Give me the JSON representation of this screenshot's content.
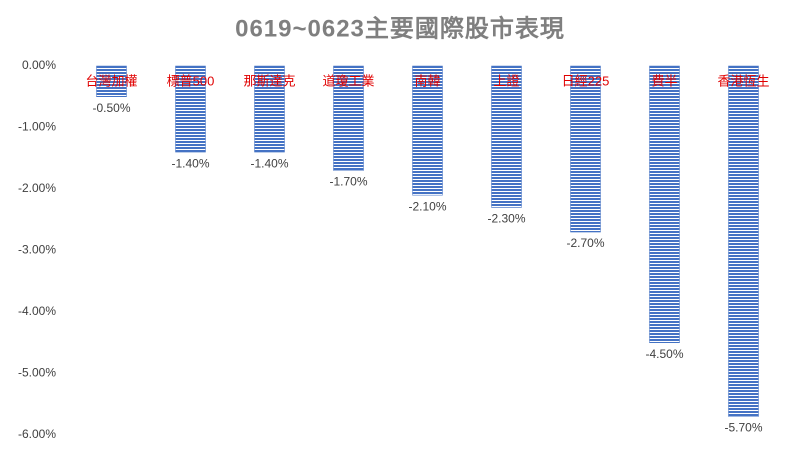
{
  "chart_data": {
    "type": "bar",
    "title": "0619~0623主要國際股市表現",
    "categories": [
      "台灣加權",
      "標普500",
      "那斯達克",
      "道瓊工業",
      "南韓",
      "上證",
      "日經225",
      "費半",
      "香港恆生"
    ],
    "values": [
      -0.5,
      -1.4,
      -1.4,
      -1.7,
      -2.1,
      -2.3,
      -2.7,
      -4.5,
      -5.7
    ],
    "value_labels": [
      "-0.50%",
      "-1.40%",
      "-1.40%",
      "-1.70%",
      "-2.10%",
      "-2.30%",
      "-2.70%",
      "-4.50%",
      "-5.70%"
    ],
    "color": "#4472c4",
    "ylim": [
      -6,
      0
    ],
    "yticks": [
      {
        "value": 0,
        "label": "0.00%"
      },
      {
        "value": -1,
        "label": "-1.00%"
      },
      {
        "value": -2,
        "label": "-2.00%"
      },
      {
        "value": -3,
        "label": "-3.00%"
      },
      {
        "value": -4,
        "label": "-4.00%"
      },
      {
        "value": -5,
        "label": "-5.00%"
      },
      {
        "value": -6,
        "label": "-6.00%"
      }
    ],
    "grid": false
  }
}
